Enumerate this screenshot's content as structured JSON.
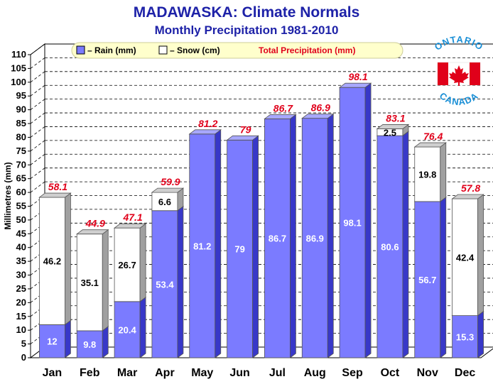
{
  "chart_data": {
    "type": "bar",
    "title": "MADAWASKA: Climate Normals",
    "subtitle": "Monthly Precipitation 1981-2010",
    "ylabel": "Millimetres (mm)",
    "xlabel": "",
    "ylim": [
      0,
      110
    ],
    "ytick_step": 5,
    "grid": true,
    "stacked": true,
    "legend_position": "top",
    "categories": [
      "Jan",
      "Feb",
      "Mar",
      "Apr",
      "May",
      "Jun",
      "Jul",
      "Aug",
      "Sep",
      "Oct",
      "Nov",
      "Dec"
    ],
    "series": [
      {
        "name": "– Rain (mm)",
        "values": [
          12,
          9.8,
          20.4,
          53.4,
          81.2,
          79,
          86.7,
          86.9,
          98.1,
          80.6,
          56.7,
          15.3
        ],
        "color": "#7b7bff"
      },
      {
        "name": "– Snow (cm)",
        "values": [
          46.2,
          35.1,
          26.7,
          6.6,
          0,
          0,
          0,
          0,
          0,
          2.5,
          19.8,
          42.4
        ],
        "color": "#ffffff"
      }
    ],
    "totals": {
      "name": "Total Precipitation (mm)",
      "values": [
        58.1,
        44.9,
        47.1,
        59.9,
        81.2,
        79,
        86.7,
        86.9,
        98.1,
        83.1,
        76.4,
        57.8
      ],
      "color": "#e0001a"
    }
  },
  "logo": {
    "top_text": "ONTARIO",
    "bottom_text": "CANADA",
    "flag_red": "#e0001a"
  },
  "colors": {
    "title": "#1e22a8",
    "rain": "#7b7bff",
    "snow": "#ffffff",
    "legend_bg": "#ffffcc",
    "total_label": "#e0001a"
  }
}
